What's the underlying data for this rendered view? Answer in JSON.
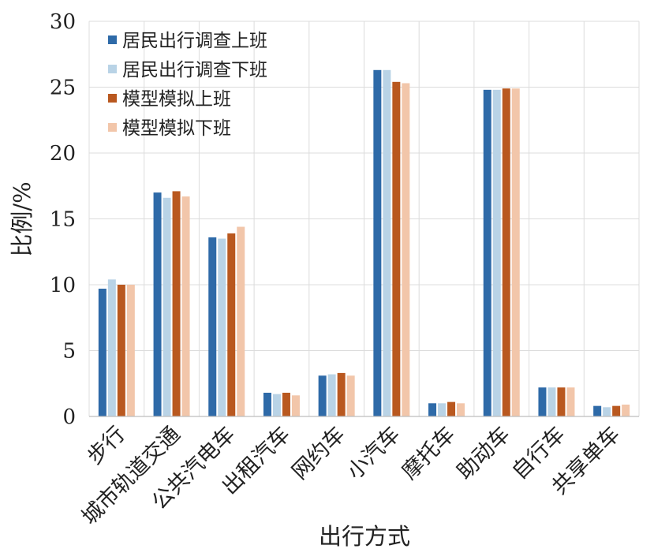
{
  "chart_data": {
    "type": "bar",
    "xlabel": "出行方式",
    "ylabel": "比例/%",
    "ylim": [
      0,
      30
    ],
    "yticks": [
      0,
      5,
      10,
      15,
      20,
      25,
      30
    ],
    "grid": true,
    "legend_position": "top-left",
    "categories": [
      "步行",
      "城市轨道交通",
      "公共汽电车",
      "出租汽车",
      "网约车",
      "小汽车",
      "摩托车",
      "助动车",
      "自行车",
      "共享单车"
    ],
    "series": [
      {
        "name": "居民出行调查上班",
        "color": "#2e6aa8",
        "values": [
          9.7,
          17.0,
          13.6,
          1.8,
          3.1,
          26.3,
          1.0,
          24.8,
          2.2,
          0.8
        ]
      },
      {
        "name": "居民出行调查下班",
        "color": "#b9d3e6",
        "values": [
          10.4,
          16.6,
          13.5,
          1.7,
          3.2,
          26.3,
          1.0,
          24.8,
          2.2,
          0.7
        ]
      },
      {
        "name": "模型模拟上班",
        "color": "#b9581f",
        "values": [
          10.0,
          17.1,
          13.9,
          1.8,
          3.3,
          25.4,
          1.1,
          24.9,
          2.2,
          0.8
        ]
      },
      {
        "name": "模型模拟下班",
        "color": "#f2c6aa",
        "values": [
          10.0,
          16.7,
          14.4,
          1.6,
          3.1,
          25.3,
          1.0,
          24.9,
          2.2,
          0.9
        ]
      }
    ]
  }
}
